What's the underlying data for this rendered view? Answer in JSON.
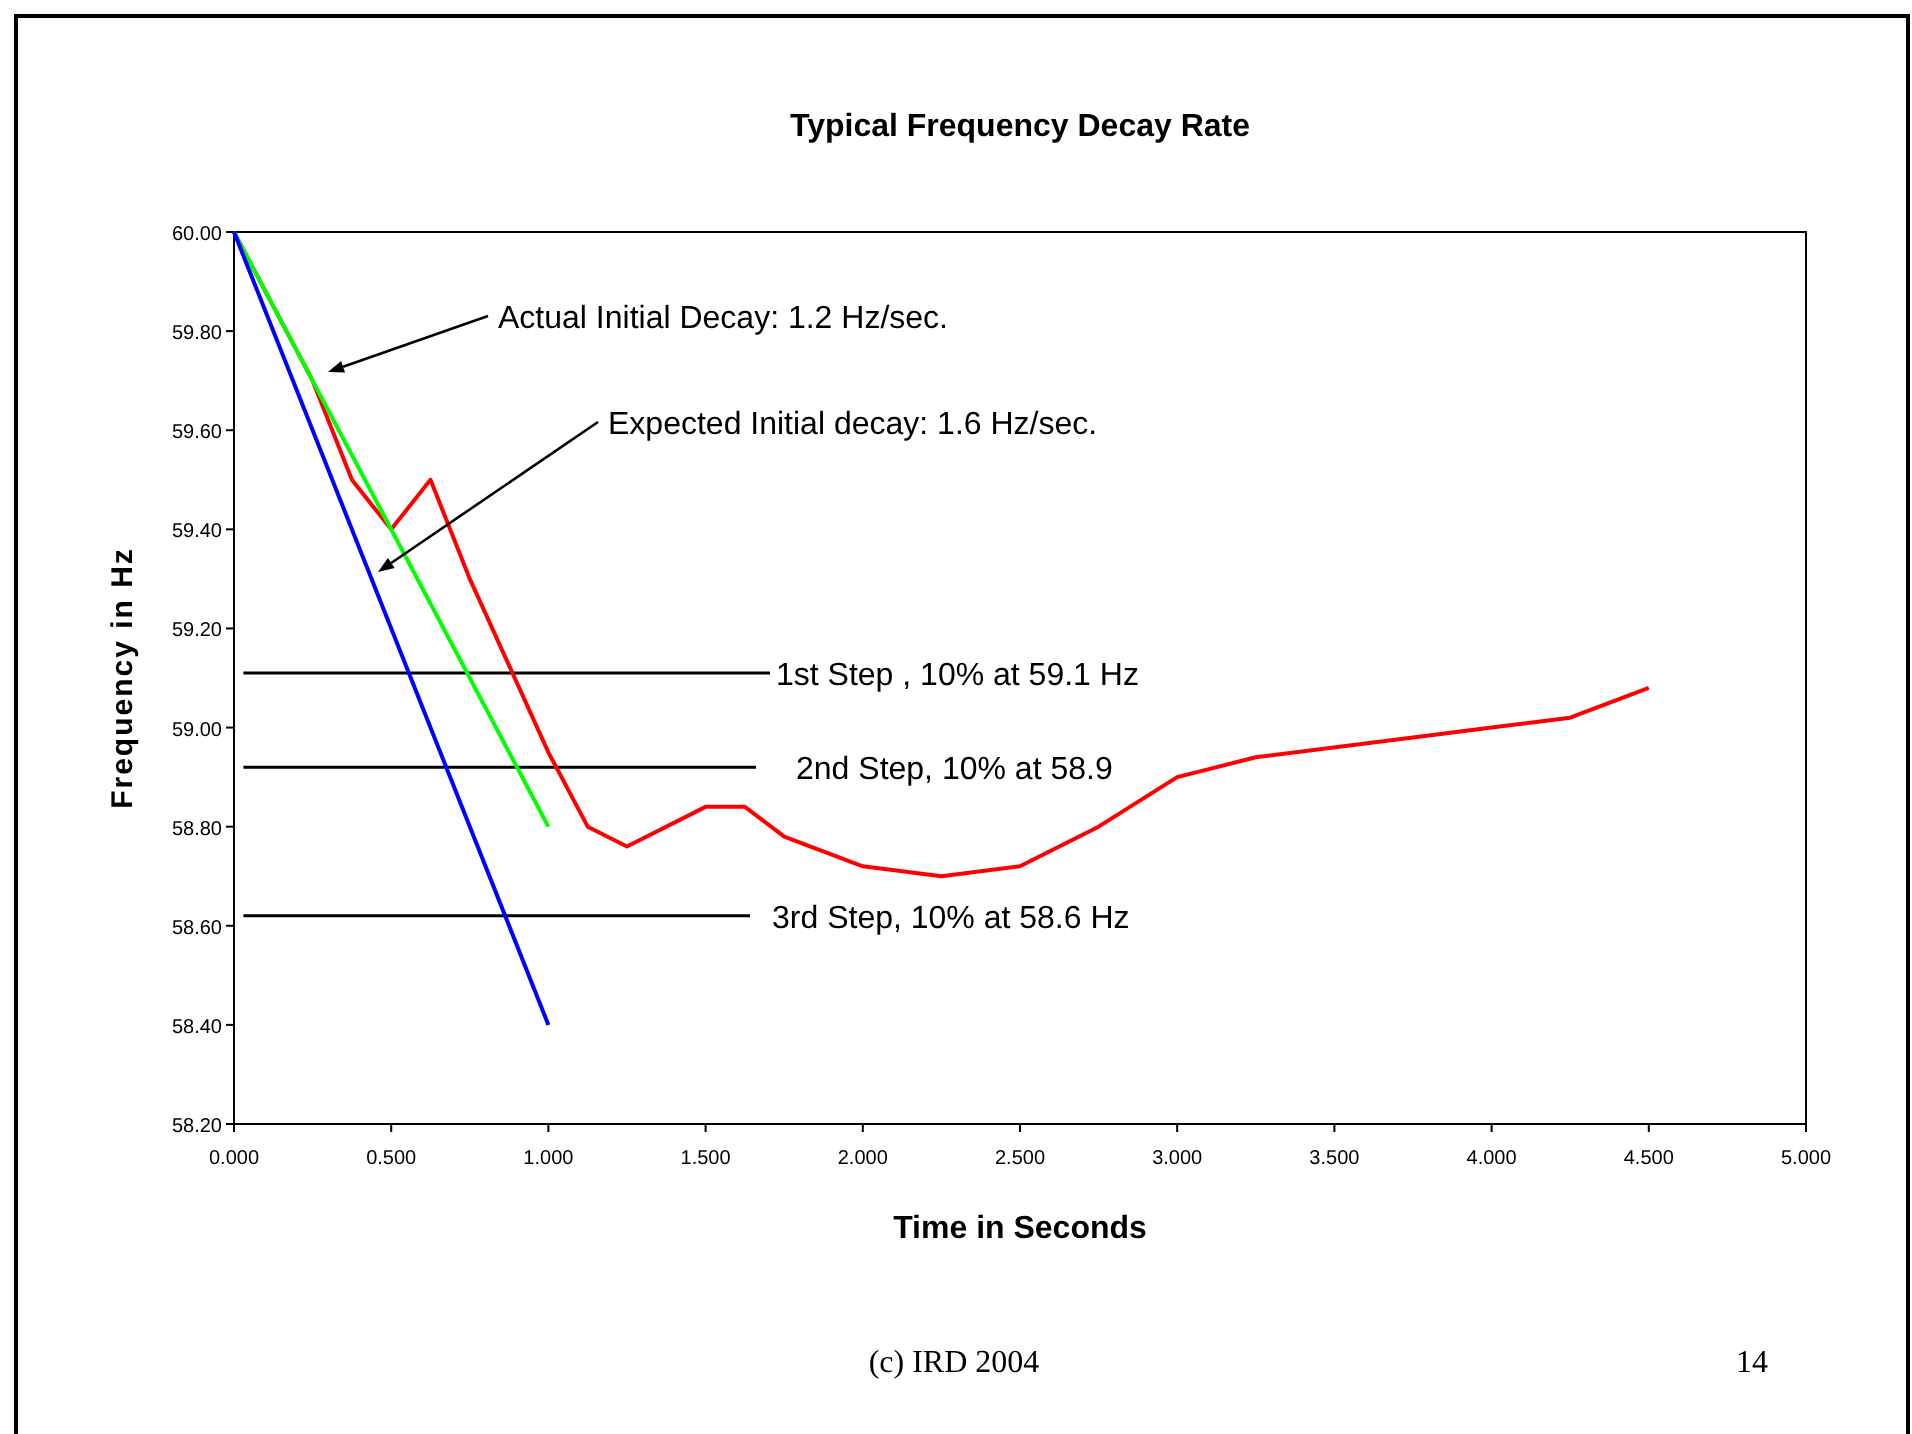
{
  "chart_data": {
    "type": "line",
    "title": "Typical Frequency Decay Rate",
    "xlabel": "Time in Seconds",
    "ylabel": "Frequency in Hz",
    "series": [
      {
        "color": "#ff0000",
        "x": [
          0,
          0.25,
          0.375,
          0.5,
          0.625,
          0.75,
          1.0,
          1.125,
          1.25,
          1.5,
          1.625,
          1.75,
          2.0,
          2.25,
          2.5,
          2.75,
          3.0,
          3.25,
          3.75,
          4.0,
          4.25,
          4.5
        ],
        "values": [
          60.0,
          59.7,
          59.5,
          59.4,
          59.5,
          59.3,
          58.95,
          58.8,
          58.76,
          58.84,
          58.84,
          58.78,
          58.72,
          58.7,
          58.72,
          58.8,
          58.9,
          58.94,
          58.98,
          59.0,
          59.02,
          59.08
        ]
      },
      {
        "color": "#00ff00",
        "x": [
          0,
          1.0
        ],
        "values": [
          60.0,
          58.8
        ]
      },
      {
        "color": "#0000ff",
        "x": [
          0,
          1.0
        ],
        "values": [
          60.0,
          58.4
        ]
      }
    ],
    "ref_lines": [
      {
        "axis": "y",
        "value": 59.11,
        "label": "1st Step , 10% at 59.1 Hz",
        "color": "#000000"
      },
      {
        "axis": "y",
        "value": 58.92,
        "label": "2nd Step, 10% at 58.9",
        "color": "#000000"
      },
      {
        "axis": "y",
        "value": 58.62,
        "label": "3rd Step, 10% at 58.6 Hz",
        "color": "#000000"
      }
    ],
    "annotations": [
      "Actual Initial Decay: 1.2 Hz/sec.",
      "Expected Initial decay: 1.6 Hz/sec.",
      "(c) IRD 2004",
      "14"
    ],
    "xlim": [
      0,
      5
    ],
    "ylim": [
      58.2,
      60
    ],
    "xticks": [
      {
        "value": 0,
        "label": "0.000"
      },
      {
        "value": 0.5,
        "label": "0.500"
      },
      {
        "value": 1,
        "label": "1.000"
      },
      {
        "value": 1.5,
        "label": "1.500"
      },
      {
        "value": 2,
        "label": "2.000"
      },
      {
        "value": 2.5,
        "label": "2.500"
      },
      {
        "value": 3,
        "label": "3.000"
      },
      {
        "value": 3.5,
        "label": "3.500"
      },
      {
        "value": 4,
        "label": "4.000"
      },
      {
        "value": 4.5,
        "label": "4.500"
      },
      {
        "value": 5,
        "label": "5.000"
      }
    ],
    "yticks": [
      {
        "value": 58.2,
        "label": "58.20"
      },
      {
        "value": 58.4,
        "label": "58.40"
      },
      {
        "value": 58.6,
        "label": "58.60"
      },
      {
        "value": 58.8,
        "label": "58.80"
      },
      {
        "value": 59,
        "label": "59.00"
      },
      {
        "value": 59.2,
        "label": "59.20"
      },
      {
        "value": 59.4,
        "label": "59.40"
      },
      {
        "value": 59.6,
        "label": "59.60"
      },
      {
        "value": 59.8,
        "label": "59.80"
      },
      {
        "value": 60,
        "label": "60.00"
      }
    ],
    "grid": false,
    "marker": "none",
    "line_style": "solid"
  }
}
